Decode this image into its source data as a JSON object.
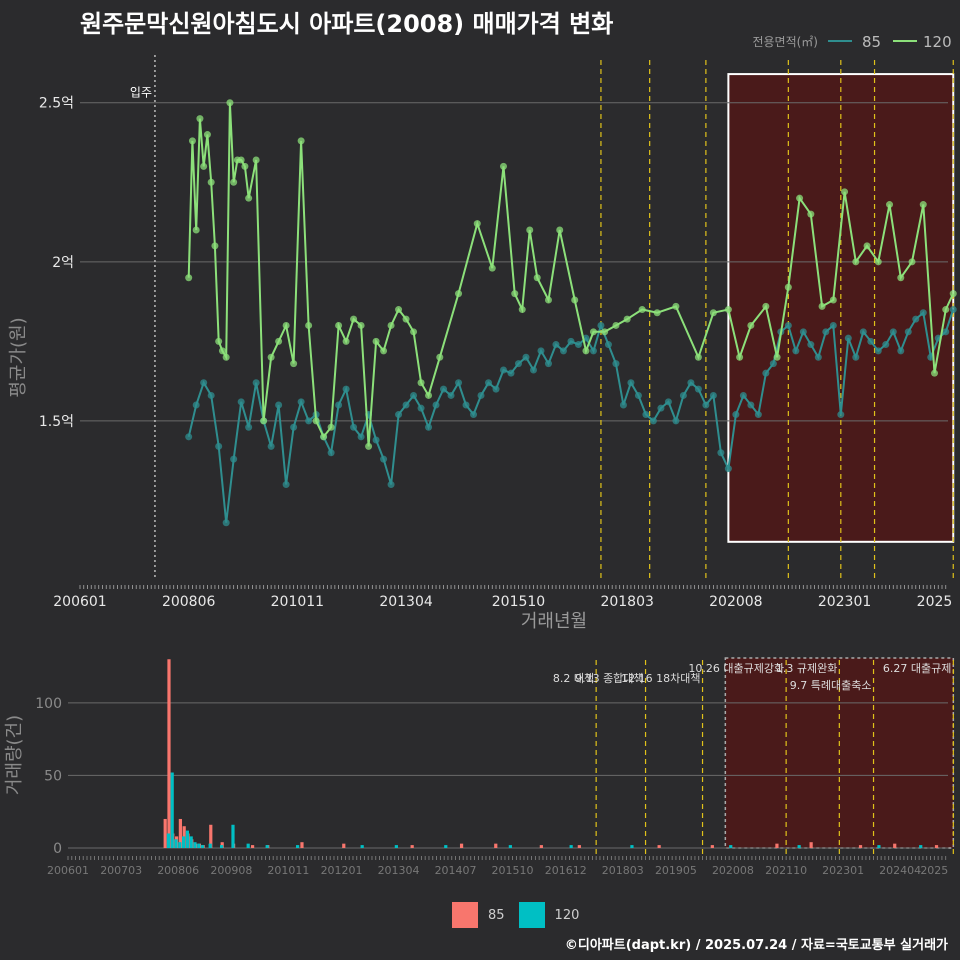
{
  "title": "원주문막신원아침도시 아파트(2008) 매매가격 변화",
  "footer": "©디아파트(dapt.kr) / 2025.07.24 / 자료=국토교통부 실거래가",
  "colors": {
    "s85": "#F8766D",
    "s120": "#00BFC4",
    "line85": "#2F8E8F",
    "line120": "#8CE07A",
    "event": "#E0C21A",
    "highlight": "#4A1A1A"
  },
  "chart_data": [
    {
      "type": "line",
      "ylabel": "평균가(원)",
      "xlabel": "거래년월",
      "x_ticks": [
        "200601",
        "200806",
        "201011",
        "201304",
        "201510",
        "201803",
        "202008",
        "202301",
        "2025"
      ],
      "y_ticks": [
        "1.5억",
        "2억",
        "2.5억"
      ],
      "y_tick_values": [
        1.5,
        2.0,
        2.5
      ],
      "ylim": [
        1.0,
        2.65
      ],
      "legend_title": "전용면적(㎡)",
      "legend_position": "top-right",
      "annotation_move_in": "입주",
      "move_in": "2007-09",
      "highlight_range": [
        "2020-06",
        "2025-06"
      ],
      "event_dates": [
        "2017-08",
        "2018-09",
        "2019-12",
        "2021-10",
        "2022-12",
        "2023-09",
        "2025-06"
      ],
      "series": [
        {
          "name": "85",
          "x": [
            "2008-06",
            "2008-08",
            "2008-10",
            "2008-12",
            "2009-02",
            "2009-04",
            "2009-06",
            "2009-08",
            "2009-10",
            "2009-12",
            "2010-02",
            "2010-04",
            "2010-06",
            "2010-08",
            "2010-10",
            "2010-12",
            "2011-02",
            "2011-04",
            "2011-06",
            "2011-08",
            "2011-10",
            "2011-12",
            "2012-02",
            "2012-04",
            "2012-06",
            "2012-08",
            "2012-10",
            "2012-12",
            "2013-02",
            "2013-04",
            "2013-06",
            "2013-08",
            "2013-10",
            "2013-12",
            "2014-02",
            "2014-04",
            "2014-06",
            "2014-08",
            "2014-10",
            "2014-12",
            "2015-02",
            "2015-04",
            "2015-06",
            "2015-08",
            "2015-10",
            "2015-12",
            "2016-02",
            "2016-04",
            "2016-06",
            "2016-08",
            "2016-10",
            "2016-12",
            "2017-02",
            "2017-04",
            "2017-06",
            "2017-08",
            "2017-10",
            "2017-12",
            "2018-02",
            "2018-04",
            "2018-06",
            "2018-08",
            "2018-10",
            "2018-12",
            "2019-02",
            "2019-04",
            "2019-06",
            "2019-08",
            "2019-10",
            "2019-12",
            "2020-02",
            "2020-04",
            "2020-06",
            "2020-08",
            "2020-10",
            "2020-12",
            "2021-02",
            "2021-04",
            "2021-06",
            "2021-08",
            "2021-10",
            "2021-12",
            "2022-02",
            "2022-04",
            "2022-06",
            "2022-08",
            "2022-10",
            "2022-12",
            "2023-02",
            "2023-04",
            "2023-06",
            "2023-08",
            "2023-10",
            "2023-12",
            "2024-02",
            "2024-04",
            "2024-06",
            "2024-08",
            "2024-10",
            "2024-12",
            "2025-02",
            "2025-04",
            "2025-06"
          ],
          "values": [
            1.45,
            1.55,
            1.62,
            1.58,
            1.42,
            1.18,
            1.38,
            1.56,
            1.48,
            1.62,
            1.5,
            1.42,
            1.55,
            1.3,
            1.48,
            1.56,
            1.5,
            1.52,
            1.45,
            1.4,
            1.55,
            1.6,
            1.48,
            1.45,
            1.52,
            1.44,
            1.38,
            1.3,
            1.52,
            1.55,
            1.58,
            1.54,
            1.48,
            1.55,
            1.6,
            1.58,
            1.62,
            1.55,
            1.52,
            1.58,
            1.62,
            1.6,
            1.66,
            1.65,
            1.68,
            1.7,
            1.66,
            1.72,
            1.68,
            1.74,
            1.72,
            1.75,
            1.74,
            1.76,
            1.72,
            1.8,
            1.74,
            1.68,
            1.55,
            1.62,
            1.58,
            1.52,
            1.5,
            1.54,
            1.56,
            1.5,
            1.58,
            1.62,
            1.6,
            1.55,
            1.58,
            1.4,
            1.35,
            1.52,
            1.58,
            1.55,
            1.52,
            1.65,
            1.68,
            1.78,
            1.8,
            1.72,
            1.78,
            1.74,
            1.7,
            1.78,
            1.8,
            1.52,
            1.76,
            1.7,
            1.78,
            1.75,
            1.72,
            1.74,
            1.78,
            1.72,
            1.78,
            1.82,
            1.84,
            1.7,
            1.76,
            1.78,
            1.85
          ]
        },
        {
          "name": "120",
          "x": [
            "2008-06",
            "2008-07",
            "2008-08",
            "2008-09",
            "2008-10",
            "2008-11",
            "2008-12",
            "2009-01",
            "2009-02",
            "2009-03",
            "2009-04",
            "2009-05",
            "2009-06",
            "2009-07",
            "2009-08",
            "2009-09",
            "2009-10",
            "2009-12",
            "2010-02",
            "2010-04",
            "2010-06",
            "2010-08",
            "2010-10",
            "2010-12",
            "2011-02",
            "2011-04",
            "2011-06",
            "2011-08",
            "2011-10",
            "2011-12",
            "2012-02",
            "2012-04",
            "2012-06",
            "2012-08",
            "2012-10",
            "2012-12",
            "2013-02",
            "2013-04",
            "2013-06",
            "2013-08",
            "2013-10",
            "2014-01",
            "2014-06",
            "2014-11",
            "2015-03",
            "2015-06",
            "2015-09",
            "2015-11",
            "2016-01",
            "2016-03",
            "2016-06",
            "2016-09",
            "2017-01",
            "2017-04",
            "2017-06",
            "2017-09",
            "2017-12",
            "2018-03",
            "2018-07",
            "2018-11",
            "2019-04",
            "2019-10",
            "2020-02",
            "2020-06",
            "2020-09",
            "2020-12",
            "2021-04",
            "2021-07",
            "2021-10",
            "2022-01",
            "2022-04",
            "2022-07",
            "2022-10",
            "2023-01",
            "2023-04",
            "2023-07",
            "2023-10",
            "2024-01",
            "2024-04",
            "2024-07",
            "2024-10",
            "2025-01",
            "2025-04",
            "2025-06"
          ],
          "values": [
            1.95,
            2.38,
            2.1,
            2.45,
            2.3,
            2.4,
            2.25,
            2.05,
            1.75,
            1.72,
            1.7,
            2.5,
            2.25,
            2.32,
            2.32,
            2.3,
            2.2,
            2.32,
            1.5,
            1.7,
            1.75,
            1.8,
            1.68,
            2.38,
            1.8,
            1.5,
            1.45,
            1.48,
            1.8,
            1.75,
            1.82,
            1.8,
            1.42,
            1.75,
            1.72,
            1.8,
            1.85,
            1.82,
            1.78,
            1.62,
            1.58,
            1.7,
            1.9,
            2.12,
            1.98,
            2.3,
            1.9,
            1.85,
            2.1,
            1.95,
            1.88,
            2.1,
            1.88,
            1.72,
            1.78,
            1.78,
            1.8,
            1.82,
            1.85,
            1.84,
            1.86,
            1.7,
            1.84,
            1.85,
            1.7,
            1.8,
            1.86,
            1.7,
            1.92,
            2.2,
            2.15,
            1.86,
            1.88,
            2.22,
            2.0,
            2.05,
            2.0,
            2.18,
            1.95,
            2.0,
            2.18,
            1.65,
            1.85,
            1.9
          ]
        }
      ]
    },
    {
      "type": "bar",
      "ylabel": "거래량(건)",
      "ylim": [
        0,
        135
      ],
      "y_ticks": [
        "0",
        "50",
        "100"
      ],
      "y_tick_values": [
        0,
        50,
        100
      ],
      "x_ticks": [
        "200601",
        "200703",
        "200806",
        "200908",
        "201011",
        "201201",
        "201304",
        "201407",
        "201510",
        "201612",
        "201803",
        "201905",
        "202008",
        "202110",
        "202301",
        "202404",
        "2025"
      ],
      "events": [
        {
          "date": "2017-08",
          "label": "8.2 대책"
        },
        {
          "date": "2018-09",
          "label": "9.13 종합대책"
        },
        {
          "date": "2019-12",
          "label": "12.16 18차대책"
        },
        {
          "date": "2021-10",
          "label": "10.26 대출규제강화"
        },
        {
          "date": "2022-12",
          "label": "1.3 규제완화"
        },
        {
          "date": "2023-09",
          "label": "9.7 특례대출축소"
        },
        {
          "date": "2025-06",
          "label": "6.27 대출규제"
        }
      ],
      "series": [
        {
          "name": "85",
          "x": [
            "2008-03",
            "2008-04",
            "2008-05",
            "2008-06",
            "2008-07",
            "2008-08",
            "2008-09",
            "2008-10",
            "2008-11",
            "2008-12",
            "2009-01",
            "2009-03",
            "2009-06",
            "2009-09",
            "2010-02",
            "2010-06",
            "2011-03",
            "2012-02",
            "2013-08",
            "2014-09",
            "2015-06",
            "2016-06",
            "2017-04",
            "2019-01",
            "2020-03",
            "2021-08",
            "2022-05",
            "2023-06",
            "2024-03",
            "2025-02"
          ],
          "values": [
            20,
            130,
            10,
            8,
            20,
            15,
            10,
            6,
            3,
            3,
            2,
            16,
            4,
            3,
            2,
            2,
            4,
            3,
            2,
            3,
            3,
            2,
            2,
            2,
            2,
            3,
            4,
            2,
            3,
            2
          ]
        },
        {
          "name": "120",
          "x": [
            "2008-03",
            "2008-04",
            "2008-05",
            "2008-06",
            "2008-07",
            "2008-08",
            "2008-09",
            "2008-10",
            "2008-11",
            "2008-12",
            "2009-02",
            "2009-05",
            "2009-08",
            "2009-12",
            "2010-05",
            "2011-01",
            "2012-06",
            "2013-03",
            "2014-04",
            "2015-09",
            "2017-01",
            "2018-05",
            "2020-07",
            "2022-01",
            "2023-10",
            "2024-09"
          ],
          "values": [
            10,
            52,
            6,
            4,
            8,
            12,
            8,
            4,
            3,
            2,
            3,
            2,
            16,
            3,
            2,
            2,
            2,
            2,
            2,
            2,
            2,
            2,
            2,
            2,
            2,
            2
          ]
        }
      ]
    }
  ],
  "legend_bottom": {
    "items": [
      "85",
      "120"
    ]
  }
}
